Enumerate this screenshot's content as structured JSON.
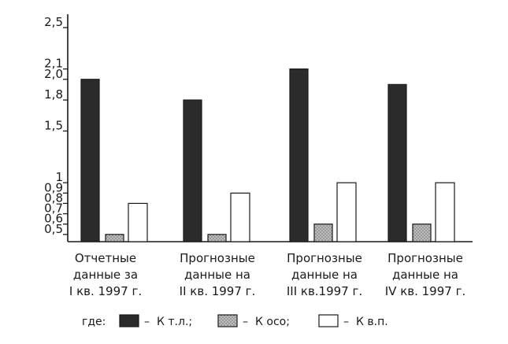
{
  "chart_data": {
    "type": "bar",
    "title": "",
    "xlabel": "",
    "ylabel": "",
    "ylim": [
      0.43,
      2.63
    ],
    "grid": false,
    "legend_position": "bottom",
    "y_ticks": [
      "2,5",
      "2,1",
      "2,0",
      "1,8",
      "1,5",
      "1",
      "0,9",
      "0,8",
      "0,7",
      "0,6",
      "0,5"
    ],
    "categories": [
      [
        "Отчетные",
        "данные за",
        "I кв. 1997 г."
      ],
      [
        "Прогнозные",
        "данные на",
        "II кв. 1997 г."
      ],
      [
        "Прогнозные",
        "данные на",
        "III кв.1997 г."
      ],
      [
        "Прогнозные",
        "данные на",
        "IV кв. 1997 г."
      ]
    ],
    "series": [
      {
        "name": "К т.л.;",
        "values": [
          2.0,
          1.8,
          2.1,
          1.95
        ],
        "fill": "dark"
      },
      {
        "name": "К осо;",
        "values": [
          0.5,
          0.5,
          0.6,
          0.6
        ],
        "fill": "stippled"
      },
      {
        "name": "К в.п.",
        "values": [
          0.8,
          0.9,
          1.0,
          1.0
        ],
        "fill": "white"
      }
    ],
    "legend_prefix": "где:",
    "legend_dash": "–"
  },
  "colors": {
    "dark": "#2b2b2b",
    "stipple_bg": "#bdbdbd",
    "stipple_dot": "#6e6e6e",
    "white": "#ffffff",
    "axis": "#1a1a1a"
  }
}
